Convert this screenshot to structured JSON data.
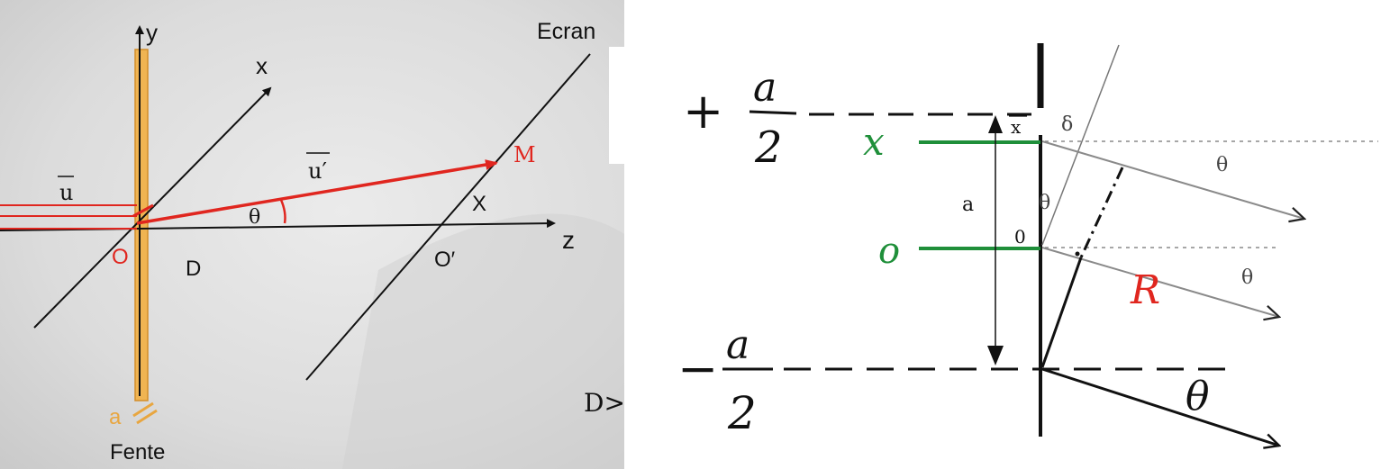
{
  "left_panel": {
    "axis_y": "y",
    "axis_x": "x",
    "axis_z": "z",
    "screen_label": "Ecran",
    "vector_u": "u",
    "vector_u_prime": "u′",
    "point_M": "M",
    "point_O": "O",
    "point_O_prime": "O′",
    "coord_X": "X",
    "angle_theta": "θ",
    "distance_D": "D",
    "slit_width": "a",
    "slit_label": "Fente",
    "cut_text": "D>",
    "colors": {
      "background": "#d9d9d9",
      "ray": "#e0261f",
      "slit": "#f0b452",
      "axes": "#111111",
      "accent_text": "#e0261f"
    }
  },
  "right_panel": {
    "top_bound_sign": "+",
    "top_bound_num": "a",
    "top_bound_den": "2",
    "bottom_bound_sign": "−",
    "bottom_bound_num": "a",
    "bottom_bound_den": "2",
    "green_x": "x",
    "green_o": "o",
    "label_x_bar": "x",
    "label_a": "a",
    "label_zero": "0",
    "label_delta": "δ",
    "theta_1": "θ",
    "theta_2": "θ",
    "theta_3": "θ",
    "red_R": "R",
    "black_theta": "θ",
    "colors": {
      "green": "#1f8f3a",
      "red": "#e0261f",
      "gray": "#8a8a8a",
      "ink": "#111111"
    }
  }
}
